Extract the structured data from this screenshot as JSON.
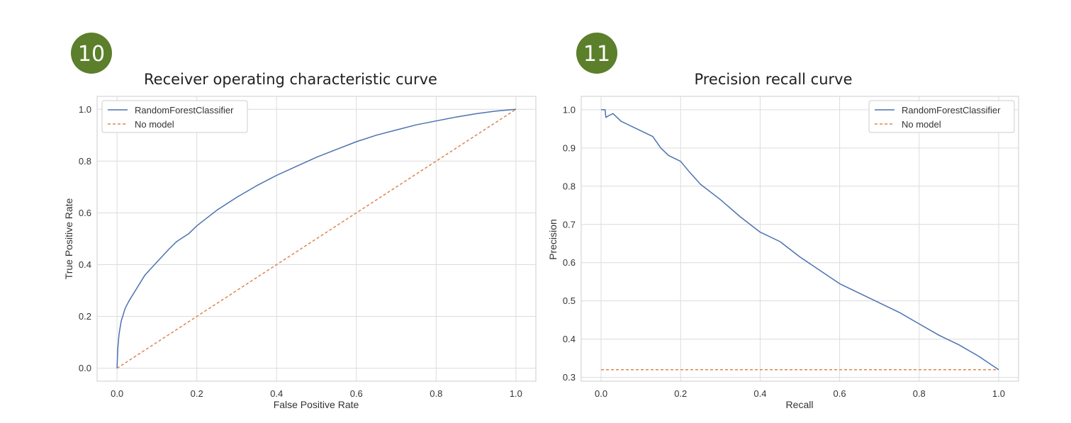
{
  "colors": {
    "badge": "#5b7f2b",
    "grid": "#dcdcdc",
    "series_model": "#4c72b0",
    "series_baseline": "#dd8452",
    "axis_text": "#333333",
    "title": "#222222"
  },
  "chart_data": [
    {
      "type": "line",
      "badge": "10",
      "title": "Receiver operating characteristic curve",
      "xlabel": "False Positive Rate",
      "ylabel": "True Positive Rate",
      "xlim": [
        -0.05,
        1.05
      ],
      "ylim": [
        -0.05,
        1.05
      ],
      "xticks": [
        0.0,
        0.2,
        0.4,
        0.6,
        0.8,
        1.0
      ],
      "yticks": [
        0.0,
        0.2,
        0.4,
        0.6,
        0.8,
        1.0
      ],
      "tick_labels_x": [
        "0.0",
        "0.2",
        "0.4",
        "0.6",
        "0.8",
        "1.0"
      ],
      "tick_labels_y": [
        "0.0",
        "0.2",
        "0.4",
        "0.6",
        "0.8",
        "1.0"
      ],
      "grid": true,
      "legend": "top-left",
      "series": [
        {
          "name": "RandomForestClassifier",
          "style": "solid",
          "x": [
            0.0,
            0.002,
            0.005,
            0.01,
            0.02,
            0.03,
            0.05,
            0.07,
            0.1,
            0.13,
            0.15,
            0.18,
            0.2,
            0.25,
            0.3,
            0.35,
            0.4,
            0.45,
            0.5,
            0.55,
            0.6,
            0.65,
            0.7,
            0.75,
            0.8,
            0.85,
            0.9,
            0.95,
            1.0
          ],
          "y": [
            0.0,
            0.08,
            0.13,
            0.18,
            0.23,
            0.26,
            0.31,
            0.36,
            0.41,
            0.46,
            0.49,
            0.52,
            0.55,
            0.61,
            0.66,
            0.705,
            0.745,
            0.78,
            0.815,
            0.845,
            0.875,
            0.9,
            0.92,
            0.94,
            0.955,
            0.97,
            0.983,
            0.993,
            1.0
          ]
        },
        {
          "name": "No model",
          "style": "dashed",
          "x": [
            0.0,
            1.0
          ],
          "y": [
            0.0,
            1.0
          ]
        }
      ]
    },
    {
      "type": "line",
      "badge": "11",
      "title": "Precision recall curve",
      "xlabel": "Recall",
      "ylabel": "Precision",
      "xlim": [
        -0.05,
        1.05
      ],
      "ylim": [
        0.29,
        1.035
      ],
      "xticks": [
        0.0,
        0.2,
        0.4,
        0.6,
        0.8,
        1.0
      ],
      "yticks": [
        0.3,
        0.4,
        0.5,
        0.6,
        0.7,
        0.8,
        0.9,
        1.0
      ],
      "tick_labels_x": [
        "0.0",
        "0.2",
        "0.4",
        "0.6",
        "0.8",
        "1.0"
      ],
      "tick_labels_y": [
        "0.3",
        "0.4",
        "0.5",
        "0.6",
        "0.7",
        "0.8",
        "0.9",
        "1.0"
      ],
      "grid": true,
      "legend": "top-right",
      "series": [
        {
          "name": "RandomForestClassifier",
          "style": "solid",
          "x": [
            0.0,
            0.01,
            0.012,
            0.02,
            0.03,
            0.05,
            0.07,
            0.1,
            0.13,
            0.15,
            0.17,
            0.2,
            0.22,
            0.25,
            0.3,
            0.35,
            0.4,
            0.45,
            0.5,
            0.55,
            0.6,
            0.65,
            0.7,
            0.75,
            0.8,
            0.85,
            0.9,
            0.95,
            1.0
          ],
          "y": [
            1.0,
            1.0,
            0.98,
            0.985,
            0.99,
            0.97,
            0.96,
            0.945,
            0.93,
            0.9,
            0.88,
            0.865,
            0.84,
            0.805,
            0.765,
            0.72,
            0.68,
            0.655,
            0.615,
            0.58,
            0.545,
            0.52,
            0.495,
            0.47,
            0.44,
            0.41,
            0.385,
            0.355,
            0.32
          ]
        },
        {
          "name": "No model",
          "style": "dashed",
          "x": [
            0.0,
            1.0
          ],
          "y": [
            0.32,
            0.32
          ]
        }
      ]
    }
  ]
}
